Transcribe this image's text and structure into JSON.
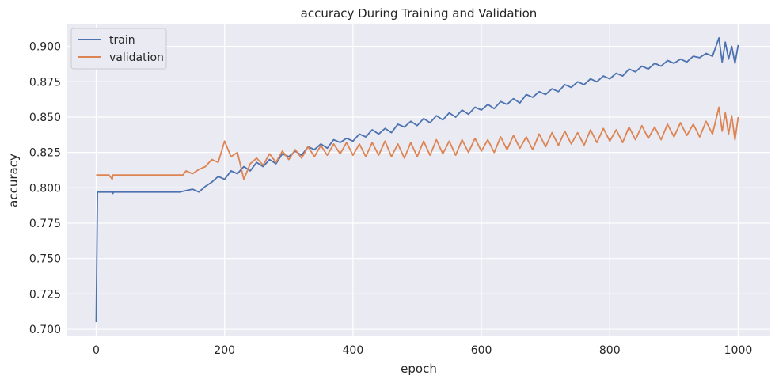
{
  "chart_data": {
    "type": "line",
    "title": "accuracy During Training and Validation",
    "xlabel": "epoch",
    "ylabel": "accuracy",
    "xlim": [
      -45,
      1050
    ],
    "ylim": [
      0.695,
      0.916
    ],
    "xticks": [
      0,
      200,
      400,
      600,
      800,
      1000
    ],
    "yticks": [
      0.7,
      0.725,
      0.75,
      0.775,
      0.8,
      0.825,
      0.85,
      0.875,
      0.9
    ],
    "ytick_labels": [
      "0.700",
      "0.725",
      "0.750",
      "0.775",
      "0.800",
      "0.825",
      "0.850",
      "0.875",
      "0.900"
    ],
    "grid": true,
    "legend_position": "top-left",
    "background": "#eaeaf2",
    "series": [
      {
        "name": "train",
        "color": "#4c72b0",
        "x": [
          0,
          2,
          5,
          25,
          26,
          27,
          50,
          100,
          130,
          140,
          150,
          160,
          170,
          180,
          190,
          200,
          210,
          220,
          230,
          240,
          250,
          260,
          270,
          280,
          290,
          300,
          310,
          320,
          330,
          340,
          350,
          360,
          370,
          380,
          390,
          400,
          410,
          420,
          430,
          440,
          450,
          460,
          470,
          480,
          490,
          500,
          510,
          520,
          530,
          540,
          550,
          560,
          570,
          580,
          590,
          600,
          610,
          620,
          630,
          640,
          650,
          660,
          670,
          680,
          690,
          700,
          710,
          720,
          730,
          740,
          750,
          760,
          770,
          780,
          790,
          800,
          810,
          820,
          830,
          840,
          850,
          860,
          870,
          880,
          890,
          900,
          910,
          920,
          930,
          940,
          950,
          960,
          970,
          975,
          980,
          985,
          990,
          995,
          1000
        ],
        "y": [
          0.705,
          0.797,
          0.797,
          0.797,
          0.796,
          0.797,
          0.797,
          0.797,
          0.797,
          0.798,
          0.799,
          0.797,
          0.801,
          0.804,
          0.808,
          0.806,
          0.812,
          0.81,
          0.815,
          0.812,
          0.818,
          0.815,
          0.82,
          0.817,
          0.824,
          0.822,
          0.826,
          0.823,
          0.829,
          0.827,
          0.831,
          0.828,
          0.834,
          0.832,
          0.835,
          0.833,
          0.838,
          0.836,
          0.841,
          0.838,
          0.842,
          0.839,
          0.845,
          0.843,
          0.847,
          0.844,
          0.849,
          0.846,
          0.851,
          0.848,
          0.853,
          0.85,
          0.855,
          0.852,
          0.857,
          0.855,
          0.859,
          0.856,
          0.861,
          0.859,
          0.863,
          0.86,
          0.866,
          0.864,
          0.868,
          0.866,
          0.87,
          0.868,
          0.873,
          0.871,
          0.875,
          0.873,
          0.877,
          0.875,
          0.879,
          0.877,
          0.881,
          0.879,
          0.884,
          0.882,
          0.886,
          0.884,
          0.888,
          0.886,
          0.89,
          0.888,
          0.891,
          0.889,
          0.893,
          0.892,
          0.895,
          0.893,
          0.906,
          0.889,
          0.903,
          0.891,
          0.9,
          0.888,
          0.901
        ]
      },
      {
        "name": "validation",
        "color": "#dd8452",
        "x": [
          0,
          10,
          20,
          25,
          26,
          27,
          50,
          100,
          135,
          140,
          150,
          160,
          170,
          180,
          190,
          200,
          210,
          220,
          230,
          240,
          250,
          260,
          270,
          280,
          290,
          300,
          310,
          320,
          330,
          340,
          350,
          360,
          370,
          380,
          390,
          400,
          410,
          420,
          430,
          440,
          450,
          460,
          470,
          480,
          490,
          500,
          510,
          520,
          530,
          540,
          550,
          560,
          570,
          580,
          590,
          600,
          610,
          620,
          630,
          640,
          650,
          660,
          670,
          680,
          690,
          700,
          710,
          720,
          730,
          740,
          750,
          760,
          770,
          780,
          790,
          800,
          810,
          820,
          830,
          840,
          850,
          860,
          870,
          880,
          890,
          900,
          910,
          920,
          930,
          940,
          950,
          960,
          970,
          975,
          980,
          985,
          990,
          995,
          1000
        ],
        "y": [
          0.809,
          0.809,
          0.809,
          0.806,
          0.809,
          0.809,
          0.809,
          0.809,
          0.809,
          0.812,
          0.81,
          0.813,
          0.815,
          0.82,
          0.818,
          0.833,
          0.822,
          0.825,
          0.806,
          0.817,
          0.821,
          0.816,
          0.824,
          0.818,
          0.826,
          0.82,
          0.827,
          0.821,
          0.829,
          0.822,
          0.83,
          0.823,
          0.831,
          0.824,
          0.832,
          0.823,
          0.831,
          0.822,
          0.832,
          0.823,
          0.833,
          0.822,
          0.831,
          0.821,
          0.832,
          0.822,
          0.833,
          0.823,
          0.834,
          0.824,
          0.833,
          0.823,
          0.834,
          0.825,
          0.835,
          0.826,
          0.834,
          0.825,
          0.836,
          0.827,
          0.837,
          0.828,
          0.836,
          0.827,
          0.838,
          0.829,
          0.839,
          0.83,
          0.84,
          0.831,
          0.839,
          0.83,
          0.841,
          0.832,
          0.842,
          0.833,
          0.841,
          0.832,
          0.843,
          0.834,
          0.844,
          0.835,
          0.843,
          0.834,
          0.845,
          0.836,
          0.846,
          0.837,
          0.845,
          0.836,
          0.847,
          0.838,
          0.857,
          0.84,
          0.853,
          0.838,
          0.851,
          0.834,
          0.85
        ]
      }
    ]
  }
}
